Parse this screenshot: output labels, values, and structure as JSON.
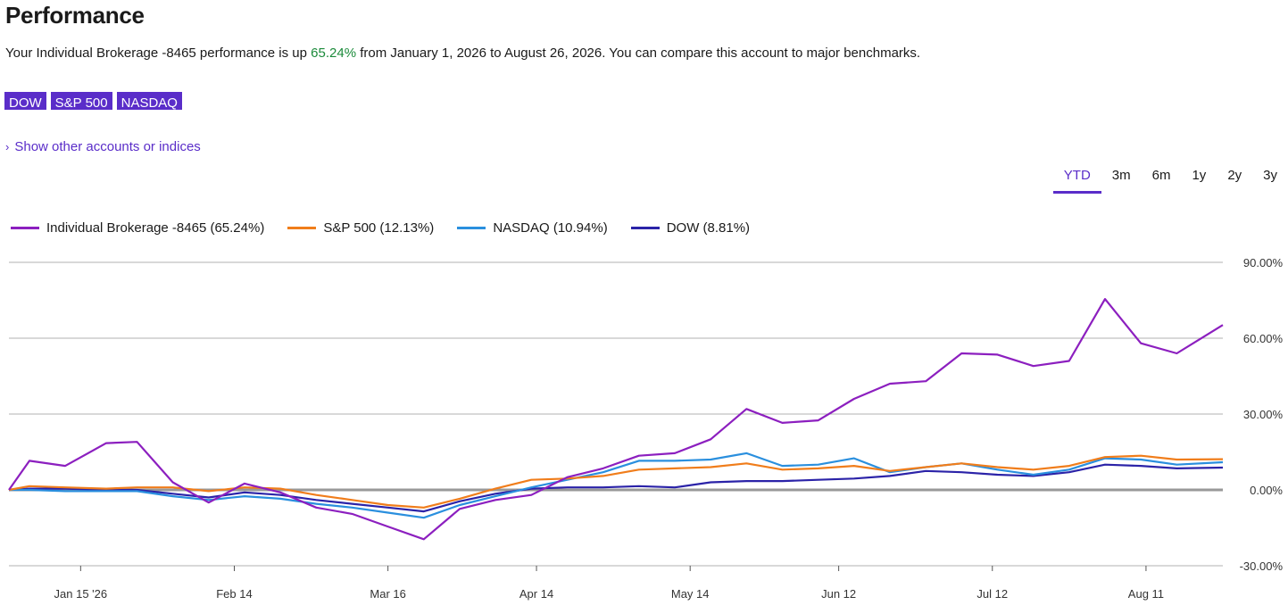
{
  "page": {
    "title": "Performance",
    "summary_prefix": "Your Individual Brokerage -8465 performance is up ",
    "summary_pct": "65.24%",
    "summary_suffix": " from January 1, 2026 to August 26, 2026. You can compare this account to major benchmarks.",
    "benchmark_chips": [
      "DOW",
      "S&P 500",
      "NASDAQ"
    ],
    "show_other_label": "Show other accounts or indices",
    "ranges": [
      "YTD",
      "3m",
      "6m",
      "1y",
      "2y",
      "3y"
    ],
    "active_range": "YTD"
  },
  "colors": {
    "accent": "#5a2dc9",
    "gain": "#1b8a3a"
  },
  "chart_data": {
    "type": "line",
    "x": [
      "2026-01-01",
      "2026-01-05",
      "2026-01-12",
      "2026-01-20",
      "2026-01-26",
      "2026-02-02",
      "2026-02-09",
      "2026-02-16",
      "2026-02-23",
      "2026-03-02",
      "2026-03-09",
      "2026-03-16",
      "2026-03-23",
      "2026-03-30",
      "2026-04-06",
      "2026-04-13",
      "2026-04-20",
      "2026-04-27",
      "2026-05-04",
      "2026-05-11",
      "2026-05-18",
      "2026-05-25",
      "2026-06-01",
      "2026-06-08",
      "2026-06-15",
      "2026-06-22",
      "2026-06-29",
      "2026-07-06",
      "2026-07-13",
      "2026-07-20",
      "2026-07-27",
      "2026-08-03",
      "2026-08-10",
      "2026-08-17",
      "2026-08-26"
    ],
    "x_ticks": [
      "Jan 15 '26",
      "Feb 14",
      "Mar 16",
      "Apr 14",
      "May 14",
      "Jun 12",
      "Jul 12",
      "Aug 11"
    ],
    "x_tick_dates": [
      "2026-01-15",
      "2026-02-14",
      "2026-03-16",
      "2026-04-14",
      "2026-05-14",
      "2026-06-12",
      "2026-07-12",
      "2026-08-11"
    ],
    "ylim": [
      -30,
      90
    ],
    "y_ticks": [
      90,
      60,
      30,
      0,
      -30
    ],
    "y_tick_labels": [
      "90.00%",
      "60.00%",
      "30.00%",
      "0.00%",
      "-30.00%"
    ],
    "legend_position": "top-left",
    "grid": true,
    "series": [
      {
        "name": "Individual Brokerage -8465 (65.24%)",
        "color": "#8c1fbf",
        "values": [
          0.0,
          11.5,
          9.5,
          18.5,
          19.0,
          3.0,
          -5.0,
          2.5,
          -1.0,
          -7.0,
          -9.5,
          -14.5,
          -19.5,
          -7.5,
          -4.0,
          -2.0,
          5.0,
          8.5,
          13.5,
          14.5,
          20.0,
          32.0,
          26.5,
          27.5,
          36.0,
          42.0,
          43.0,
          54.0,
          53.5,
          49.0,
          51.0,
          75.5,
          58.0,
          54.0,
          65.24
        ]
      },
      {
        "name": "S&P 500 (12.13%)",
        "color": "#f07d1b",
        "values": [
          0.0,
          1.5,
          1.0,
          0.5,
          1.0,
          1.0,
          -0.5,
          1.0,
          0.5,
          -2.0,
          -4.0,
          -6.0,
          -7.0,
          -3.5,
          0.5,
          4.0,
          4.5,
          5.5,
          8.0,
          8.5,
          9.0,
          10.5,
          8.0,
          8.5,
          9.5,
          7.5,
          9.0,
          10.5,
          9.0,
          8.0,
          9.5,
          13.0,
          13.5,
          12.0,
          12.13
        ]
      },
      {
        "name": "NASDAQ (10.94%)",
        "color": "#2a8fde",
        "values": [
          0.0,
          0.0,
          -0.5,
          -0.5,
          -0.5,
          -2.5,
          -4.0,
          -2.5,
          -3.5,
          -5.5,
          -7.0,
          -9.0,
          -11.0,
          -6.0,
          -2.5,
          1.0,
          4.0,
          7.0,
          11.5,
          11.5,
          12.0,
          14.5,
          9.5,
          10.0,
          12.5,
          7.0,
          9.0,
          10.5,
          8.0,
          6.0,
          8.0,
          12.5,
          12.0,
          10.0,
          10.94
        ]
      },
      {
        "name": "DOW (8.81%)",
        "color": "#2b23a8",
        "values": [
          0.0,
          0.5,
          0.5,
          0.0,
          0.0,
          -1.5,
          -3.0,
          -1.0,
          -2.0,
          -4.0,
          -5.5,
          -7.0,
          -8.5,
          -4.5,
          -1.5,
          0.5,
          1.0,
          1.0,
          1.5,
          1.0,
          3.0,
          3.5,
          3.5,
          4.0,
          4.5,
          5.5,
          7.5,
          7.0,
          6.0,
          5.5,
          7.0,
          10.0,
          9.5,
          8.5,
          8.81
        ]
      }
    ]
  }
}
